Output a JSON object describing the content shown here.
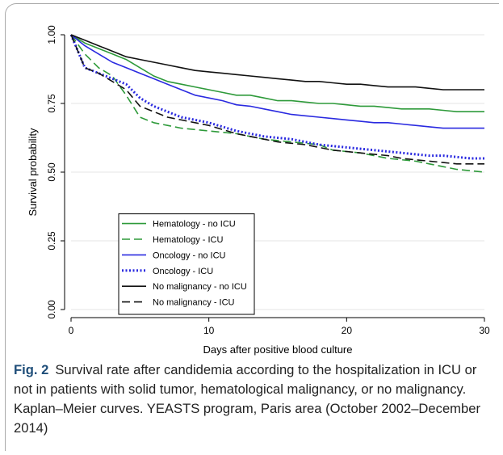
{
  "chart_data": {
    "type": "line",
    "caption_label": "Fig. 2",
    "caption": "Survival rate after candidemia according to the hospitalization in ICU or not in patients with solid tumor, hematological malignancy, or no malignancy. Kaplan–Meier curves. YEASTS program, Paris area (October 2002–December 2014)",
    "xlabel": "Days after positive blood culture",
    "ylabel": "Survival probability",
    "x": [
      0,
      1,
      2,
      3,
      4,
      5,
      6,
      7,
      8,
      9,
      10,
      11,
      12,
      13,
      14,
      15,
      16,
      17,
      18,
      19,
      20,
      21,
      22,
      23,
      24,
      25,
      26,
      27,
      28,
      29,
      30
    ],
    "series": [
      {
        "name": "Hematology - no ICU",
        "color": "#2e9a3a",
        "dash": "solid",
        "values": [
          1.0,
          0.97,
          0.95,
          0.93,
          0.91,
          0.88,
          0.85,
          0.83,
          0.82,
          0.81,
          0.8,
          0.79,
          0.78,
          0.78,
          0.77,
          0.76,
          0.76,
          0.755,
          0.75,
          0.75,
          0.745,
          0.74,
          0.74,
          0.735,
          0.73,
          0.73,
          0.73,
          0.725,
          0.72,
          0.72,
          0.72
        ]
      },
      {
        "name": "Hematology - ICU",
        "color": "#2e9a3a",
        "dash": "dashed",
        "values": [
          1.0,
          0.93,
          0.88,
          0.85,
          0.78,
          0.7,
          0.68,
          0.67,
          0.66,
          0.655,
          0.65,
          0.645,
          0.64,
          0.63,
          0.62,
          0.615,
          0.61,
          0.605,
          0.6,
          0.58,
          0.575,
          0.57,
          0.56,
          0.55,
          0.545,
          0.54,
          0.53,
          0.52,
          0.51,
          0.505,
          0.5
        ]
      },
      {
        "name": "Oncology - no ICU",
        "color": "#2a2ae0",
        "dash": "solid",
        "values": [
          1.0,
          0.96,
          0.93,
          0.9,
          0.88,
          0.86,
          0.84,
          0.82,
          0.8,
          0.78,
          0.77,
          0.76,
          0.745,
          0.74,
          0.73,
          0.72,
          0.71,
          0.705,
          0.7,
          0.695,
          0.69,
          0.685,
          0.68,
          0.68,
          0.675,
          0.67,
          0.665,
          0.66,
          0.66,
          0.66,
          0.66
        ]
      },
      {
        "name": "Oncology - ICU",
        "color": "#2a2ae0",
        "dash": "dotted",
        "values": [
          1.0,
          0.88,
          0.86,
          0.84,
          0.82,
          0.77,
          0.74,
          0.72,
          0.7,
          0.69,
          0.68,
          0.665,
          0.65,
          0.64,
          0.63,
          0.625,
          0.62,
          0.61,
          0.6,
          0.595,
          0.59,
          0.585,
          0.58,
          0.575,
          0.57,
          0.565,
          0.56,
          0.56,
          0.555,
          0.55,
          0.55
        ]
      },
      {
        "name": "No malignancy - no ICU",
        "color": "#111111",
        "dash": "solid",
        "values": [
          1.0,
          0.98,
          0.96,
          0.94,
          0.92,
          0.91,
          0.9,
          0.89,
          0.88,
          0.87,
          0.865,
          0.86,
          0.855,
          0.85,
          0.845,
          0.84,
          0.835,
          0.83,
          0.83,
          0.825,
          0.82,
          0.82,
          0.815,
          0.81,
          0.81,
          0.81,
          0.805,
          0.8,
          0.8,
          0.8,
          0.8
        ]
      },
      {
        "name": "No malignancy - ICU",
        "color": "#111111",
        "dash": "dashed",
        "values": [
          1.0,
          0.88,
          0.86,
          0.83,
          0.8,
          0.74,
          0.72,
          0.7,
          0.69,
          0.68,
          0.67,
          0.655,
          0.64,
          0.63,
          0.62,
          0.61,
          0.605,
          0.6,
          0.59,
          0.58,
          0.575,
          0.57,
          0.565,
          0.56,
          0.55,
          0.545,
          0.54,
          0.535,
          0.53,
          0.53,
          0.53
        ]
      }
    ],
    "xlim": [
      0,
      30
    ],
    "xticks": [
      0,
      10,
      20,
      30
    ],
    "ylim": [
      0,
      1
    ],
    "yticks": [
      {
        "value": 0,
        "label": "0.00"
      },
      {
        "value": 0.25,
        "label": "0.25"
      },
      {
        "value": 0.5,
        "label": "0.50"
      },
      {
        "value": 0.75,
        "label": "0.75"
      },
      {
        "value": 1,
        "label": "1.00"
      }
    ],
    "grid": true,
    "legend": "lower left"
  }
}
